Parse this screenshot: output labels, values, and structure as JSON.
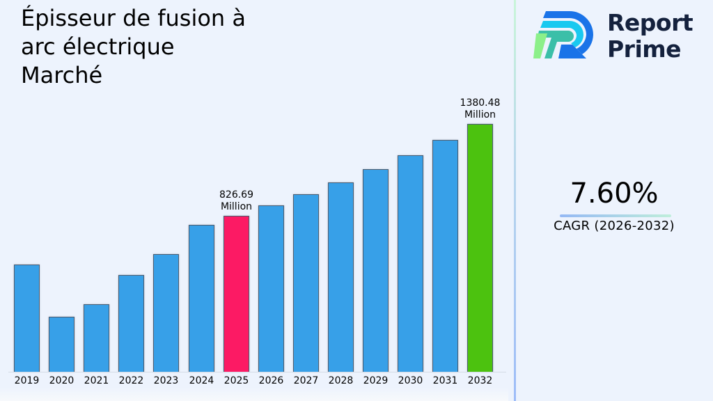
{
  "title": "Épisseur de fusion à arc électrique Marché",
  "title_lines": [
    "Épisseur de fusion à",
    "arc électrique",
    "Marché"
  ],
  "brand": {
    "name_line1": "Report",
    "name_line2": "Prime",
    "icon": "report-prime-logo-icon"
  },
  "cagr": {
    "value": "7.60%",
    "label": "CAGR (2026-2032)"
  },
  "colors": {
    "bar_default": "#37a0e8",
    "bar_highlight_2025": "#fc1a64",
    "bar_highlight_2032": "#4cc20f",
    "background": "#edf3fd",
    "brand_text": "#14213d"
  },
  "chart_data": {
    "type": "bar",
    "title": "Épisseur de fusion à arc électrique Marché",
    "xlabel": "",
    "ylabel": "",
    "categories": [
      "2019",
      "2020",
      "2021",
      "2022",
      "2023",
      "2024",
      "2025",
      "2026",
      "2027",
      "2028",
      "2029",
      "2030",
      "2031",
      "2032"
    ],
    "values": [
      534,
      220,
      296,
      471,
      597,
      772,
      826.69,
      889.52,
      957.13,
      1029.87,
      1108.14,
      1192.36,
      1282.98,
      1380.48
    ],
    "unit": "Million",
    "annotations": [
      {
        "category": "2025",
        "text": "826.69 Million"
      },
      {
        "category": "2032",
        "text": "1380.48 Million"
      }
    ],
    "highlight": {
      "2025": "#fc1a64",
      "2032": "#4cc20f"
    },
    "ylim": [
      -110,
      1380.48
    ],
    "grid": false,
    "y_axis_visible": false,
    "legend": "none"
  }
}
